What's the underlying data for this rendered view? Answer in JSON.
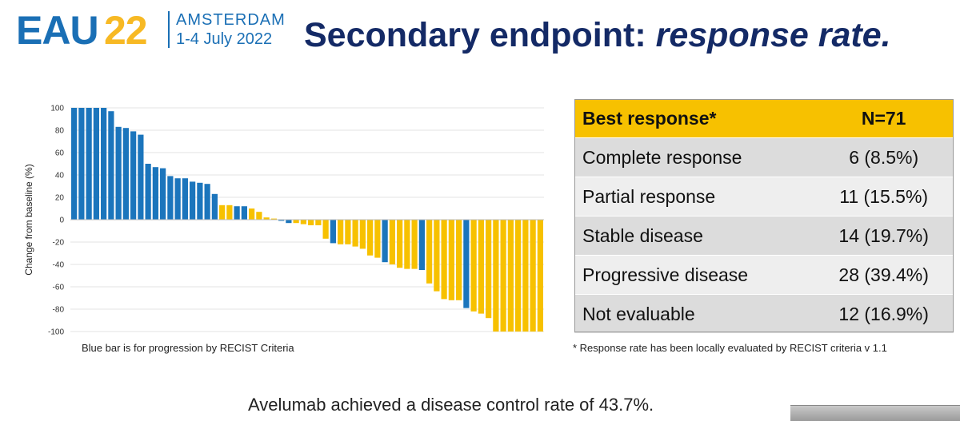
{
  "logo": {
    "brand": "EAU",
    "year": "22",
    "city": "AMSTERDAM",
    "dates": "1-4 July 2022"
  },
  "title": {
    "main": "Secondary endpoint: ",
    "emph": "response rate."
  },
  "chart_data": {
    "type": "bar",
    "ylabel": "Change from baseline (%)",
    "xlabel": "",
    "ylim": [
      -100,
      100
    ],
    "yticks": [
      100,
      80,
      60,
      40,
      20,
      0,
      -20,
      -40,
      -60,
      -80,
      -100
    ],
    "grid": true,
    "legend": "none",
    "colors": {
      "progression": "#1b75bc",
      "other": "#f7c100"
    },
    "values": [
      100,
      100,
      100,
      100,
      100,
      97,
      83,
      82,
      79,
      76,
      50,
      47,
      46,
      39,
      37,
      37,
      34,
      33,
      32,
      23,
      13,
      13,
      12,
      12,
      10,
      7,
      2,
      1,
      -1,
      -3,
      -3,
      -4,
      -5,
      -5,
      -17,
      -21,
      -22,
      -22,
      -24,
      -26,
      -32,
      -34,
      -38,
      -40,
      -43,
      -44,
      -44,
      -45,
      -57,
      -64,
      -71,
      -72,
      -72,
      -79,
      -82,
      -84,
      -88,
      -100,
      -100,
      -100,
      -100,
      -100,
      -100,
      -100
    ],
    "progression": [
      1,
      1,
      1,
      1,
      1,
      1,
      1,
      1,
      1,
      1,
      1,
      1,
      1,
      1,
      1,
      1,
      1,
      1,
      1,
      1,
      0,
      0,
      1,
      1,
      0,
      0,
      0,
      0,
      1,
      1,
      0,
      0,
      0,
      0,
      0,
      1,
      0,
      0,
      0,
      0,
      0,
      0,
      1,
      0,
      0,
      0,
      0,
      1,
      0,
      0,
      0,
      0,
      0,
      1,
      0,
      0,
      0,
      0,
      0,
      0,
      0,
      0,
      0,
      0
    ],
    "caption": "Blue bar is for progression by RECIST Criteria"
  },
  "table": {
    "headers": [
      "Best response*",
      "N=71"
    ],
    "rows": [
      [
        "Complete response",
        "6 (8.5%)"
      ],
      [
        "Partial response",
        "11 (15.5%)"
      ],
      [
        "Stable disease",
        "14 (19.7%)"
      ],
      [
        "Progressive disease",
        "28 (39.4%)"
      ],
      [
        "Not evaluable",
        "12 (16.9%)"
      ]
    ]
  },
  "footnote": "* Response rate has been locally evaluated by RECIST criteria v 1.1",
  "conclusion": "Avelumab achieved a disease control rate of 43.7%."
}
